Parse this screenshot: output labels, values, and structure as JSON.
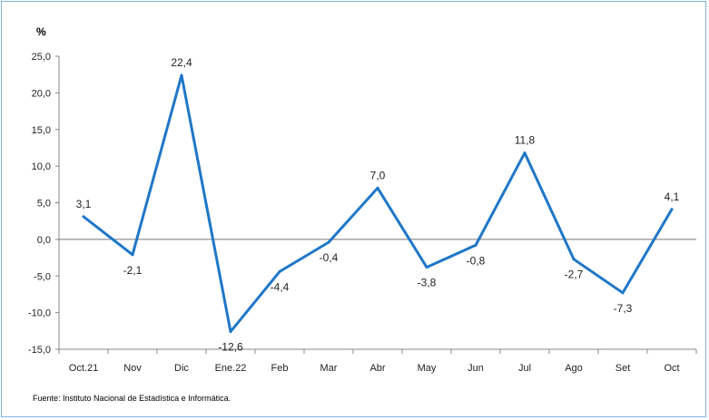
{
  "chart_data": {
    "type": "line",
    "unit_label": "%",
    "categories": [
      "Oct.21",
      "Nov",
      "Dic",
      "Ene.22",
      "Feb",
      "Mar",
      "Abr",
      "May",
      "Jun",
      "Jul",
      "Ago",
      "Set",
      "Oct"
    ],
    "values": [
      3.1,
      -2.1,
      22.4,
      -12.6,
      -4.4,
      -0.4,
      7.0,
      -3.8,
      -0.8,
      11.8,
      -2.7,
      -7.3,
      4.1
    ],
    "data_labels": [
      "3,1",
      "-2,1",
      "22,4",
      "-12,6",
      "-4,4",
      "-0,4",
      "7,0",
      "-3,8",
      "-0,8",
      "11,8",
      "-2,7",
      "-7,3",
      "4,1"
    ],
    "y_ticks": [
      "25,0",
      "20,0",
      "15,0",
      "10,0",
      "5,0",
      "0,0",
      "-5,0",
      "-10,0",
      "-15,0"
    ],
    "ylim": [
      -15,
      25
    ],
    "grid": false,
    "line_color": "#1f77c8"
  },
  "source_note": "Fuente: Instituto Nacional de Estadística e Informática."
}
